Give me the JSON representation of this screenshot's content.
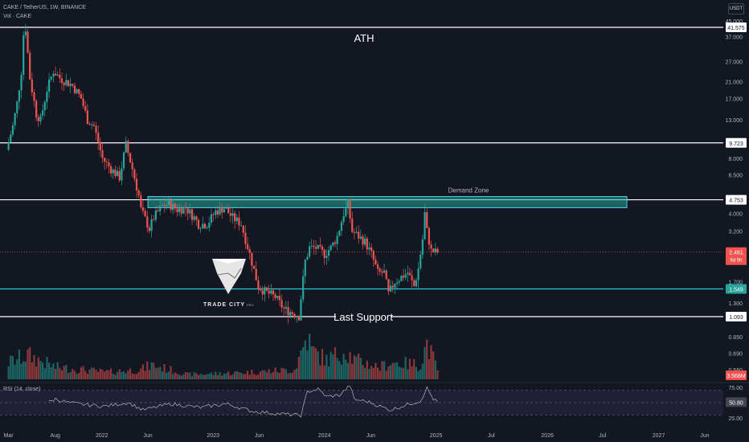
{
  "header": {
    "symbol_line": "CAKE / TetherUS, 1W, BINANCE",
    "vol_line": "Vol · CAKE",
    "currency_badge": "USDT",
    "rsi_line": "RSI (14, close)"
  },
  "logo": {
    "name": "TRADE CITY",
    "suffix": "PRO"
  },
  "colors": {
    "background": "#131722",
    "up": "#26a69a",
    "down": "#ef5350",
    "level_line": "#ffffff",
    "support_line": "#26c6da",
    "zone_fill": "#26a69a",
    "rsi_line": "#b2b5be",
    "rsi_band": "#7e57c2"
  },
  "chart_data": {
    "type": "candlestick",
    "title": "CAKE / TetherUS, 1W, BINANCE",
    "y_scale": "log",
    "ylim": [
      0.5,
      45
    ],
    "y_ticks": [
      45,
      37,
      27,
      21,
      17,
      13,
      8,
      6.5,
      4,
      3.2,
      2.5,
      1.7,
      1.3,
      0.85,
      0.69,
      0.56
    ],
    "y_tick_labels": [
      "45.000",
      "37.000",
      "27.000",
      "21.000",
      "17.000",
      "13.000",
      "8.000",
      "6.500",
      "4.000",
      "3.200",
      "2.500",
      "1.700",
      "1.300",
      "0.850",
      "0.690",
      "0.560"
    ],
    "x_range": [
      "2021-02-01",
      "2027-08-01"
    ],
    "x_ticks": [
      {
        "label": "Mar",
        "date": "2021-03-01"
      },
      {
        "label": "Aug",
        "date": "2021-08-01"
      },
      {
        "label": "2022",
        "date": "2022-01-01"
      },
      {
        "label": "Jun",
        "date": "2022-06-01"
      },
      {
        "label": "2023",
        "date": "2023-01-01"
      },
      {
        "label": "Jun",
        "date": "2023-06-01"
      },
      {
        "label": "2024",
        "date": "2024-01-01"
      },
      {
        "label": "Jun",
        "date": "2024-06-01"
      },
      {
        "label": "2025",
        "date": "2025-01-01"
      },
      {
        "label": "Jul",
        "date": "2025-07-01"
      },
      {
        "label": "2026",
        "date": "2026-01-01"
      },
      {
        "label": "Jul",
        "date": "2026-07-01"
      },
      {
        "label": "2027",
        "date": "2027-01-01"
      },
      {
        "label": "Jun",
        "date": "2027-06-01"
      }
    ],
    "price_path": [
      [
        "2021-03-01",
        8.9
      ],
      [
        "2021-03-22",
        12
      ],
      [
        "2021-04-05",
        16
      ],
      [
        "2021-04-19",
        24
      ],
      [
        "2021-04-26",
        38
      ],
      [
        "2021-05-03",
        41
      ],
      [
        "2021-05-17",
        22
      ],
      [
        "2021-06-07",
        14
      ],
      [
        "2021-06-21",
        13
      ],
      [
        "2021-07-12",
        19
      ],
      [
        "2021-08-02",
        24
      ],
      [
        "2021-08-23",
        22
      ],
      [
        "2021-09-13",
        21
      ],
      [
        "2021-10-04",
        20
      ],
      [
        "2021-11-01",
        17
      ],
      [
        "2021-11-22",
        13
      ],
      [
        "2021-12-13",
        12
      ],
      [
        "2022-01-10",
        8
      ],
      [
        "2022-02-07",
        7
      ],
      [
        "2022-03-07",
        6.3
      ],
      [
        "2022-03-28",
        9.5
      ],
      [
        "2022-04-18",
        7
      ],
      [
        "2022-05-09",
        5
      ],
      [
        "2022-05-16",
        4.2
      ],
      [
        "2022-06-13",
        3.3
      ],
      [
        "2022-06-27",
        3.8
      ],
      [
        "2022-07-25",
        4.4
      ],
      [
        "2022-08-15",
        4.5
      ],
      [
        "2022-09-12",
        4.2
      ],
      [
        "2022-10-10",
        4.3
      ],
      [
        "2022-11-07",
        3.8
      ],
      [
        "2022-11-21",
        3.5
      ],
      [
        "2022-12-19",
        3.5
      ],
      [
        "2023-01-16",
        4.1
      ],
      [
        "2023-02-13",
        4.3
      ],
      [
        "2023-03-13",
        3.8
      ],
      [
        "2023-04-10",
        3.5
      ],
      [
        "2023-05-08",
        2.4
      ],
      [
        "2023-06-05",
        1.6
      ],
      [
        "2023-06-26",
        1.5
      ],
      [
        "2023-07-31",
        1.4
      ],
      [
        "2023-08-28",
        1.2
      ],
      [
        "2023-09-25",
        1.15
      ],
      [
        "2023-10-16",
        1.1
      ],
      [
        "2023-11-06",
        2.2
      ],
      [
        "2023-11-20",
        2.6
      ],
      [
        "2023-12-11",
        2.6
      ],
      [
        "2024-01-08",
        2.4
      ],
      [
        "2024-01-29",
        2.6
      ],
      [
        "2024-02-19",
        3.0
      ],
      [
        "2024-03-11",
        4.0
      ],
      [
        "2024-03-25",
        4.5
      ],
      [
        "2024-04-08",
        3.2
      ],
      [
        "2024-04-29",
        3.0
      ],
      [
        "2024-05-20",
        2.8
      ],
      [
        "2024-06-10",
        2.4
      ],
      [
        "2024-07-01",
        1.9
      ],
      [
        "2024-07-22",
        1.9
      ],
      [
        "2024-08-05",
        1.45
      ],
      [
        "2024-08-26",
        1.7
      ],
      [
        "2024-09-16",
        1.8
      ],
      [
        "2024-10-07",
        1.9
      ],
      [
        "2024-10-28",
        1.6
      ],
      [
        "2024-11-11",
        2.0
      ],
      [
        "2024-11-25",
        2.9
      ],
      [
        "2024-12-02",
        4.0
      ],
      [
        "2024-12-09",
        3.2
      ],
      [
        "2024-12-23",
        2.5
      ],
      [
        "2025-01-06",
        2.46
      ]
    ],
    "volume_path": [
      [
        "2021-03-01",
        0.35
      ],
      [
        "2021-05-03",
        0.5
      ],
      [
        "2021-08-02",
        0.25
      ],
      [
        "2021-11-01",
        0.2
      ],
      [
        "2022-01-10",
        0.15
      ],
      [
        "2022-05-09",
        0.2
      ],
      [
        "2022-06-13",
        0.3
      ],
      [
        "2022-10-10",
        0.1
      ],
      [
        "2023-01-16",
        0.12
      ],
      [
        "2023-05-08",
        0.15
      ],
      [
        "2023-09-25",
        0.2
      ],
      [
        "2023-11-06",
        0.9
      ],
      [
        "2023-11-20",
        0.6
      ],
      [
        "2024-01-08",
        0.4
      ],
      [
        "2024-03-11",
        0.6
      ],
      [
        "2024-04-08",
        0.4
      ],
      [
        "2024-07-01",
        0.25
      ],
      [
        "2024-08-05",
        0.35
      ],
      [
        "2024-11-11",
        0.3
      ],
      [
        "2024-12-02",
        0.75
      ],
      [
        "2025-01-06",
        0.2
      ]
    ],
    "rsi": {
      "period": 14,
      "ticks": [
        75,
        50,
        25
      ],
      "upper_band": 70,
      "lower_band": 30,
      "current": 50.8,
      "path": [
        [
          "2021-07-12",
          51
        ],
        [
          "2021-08-02",
          56
        ],
        [
          "2021-09-13",
          50
        ],
        [
          "2021-11-01",
          47
        ],
        [
          "2022-01-10",
          44
        ],
        [
          "2022-03-28",
          50
        ],
        [
          "2022-05-16",
          38
        ],
        [
          "2022-08-15",
          48
        ],
        [
          "2022-11-21",
          42
        ],
        [
          "2023-02-13",
          48
        ],
        [
          "2023-05-08",
          36
        ],
        [
          "2023-07-31",
          32
        ],
        [
          "2023-10-16",
          29
        ],
        [
          "2023-11-06",
          68
        ],
        [
          "2023-12-11",
          72
        ],
        [
          "2024-01-08",
          60
        ],
        [
          "2024-02-19",
          62
        ],
        [
          "2024-03-25",
          78
        ],
        [
          "2024-04-08",
          55
        ],
        [
          "2024-05-20",
          52
        ],
        [
          "2024-07-01",
          44
        ],
        [
          "2024-08-05",
          38
        ],
        [
          "2024-10-07",
          48
        ],
        [
          "2024-11-11",
          53
        ],
        [
          "2024-12-02",
          74
        ],
        [
          "2024-12-23",
          56
        ],
        [
          "2025-01-06",
          50.8
        ]
      ]
    },
    "horizontal_levels": [
      {
        "label": "41.575",
        "value": 41.575,
        "annotation": "ATH",
        "color": "#ffffff"
      },
      {
        "label": "9.723",
        "value": 9.723,
        "annotation": "",
        "color": "#ffffff"
      },
      {
        "label": "4.753",
        "value": 4.753,
        "annotation": "",
        "color": "#ffffff"
      },
      {
        "label": "1.549",
        "value": 1.549,
        "annotation": "",
        "color": "#26c6da"
      },
      {
        "label": "1.093",
        "value": 1.093,
        "annotation": "Last Support",
        "color": "#ffffff"
      }
    ],
    "zone": {
      "label": "Demand Zone",
      "from_date": "2022-06-01",
      "to_date": "2025-06-01",
      "low": 4.3,
      "high": 4.95
    },
    "last_price": {
      "label": "2.461",
      "value": 2.461,
      "countdown": "6d 5h"
    },
    "volume_badge": "3.568M"
  }
}
